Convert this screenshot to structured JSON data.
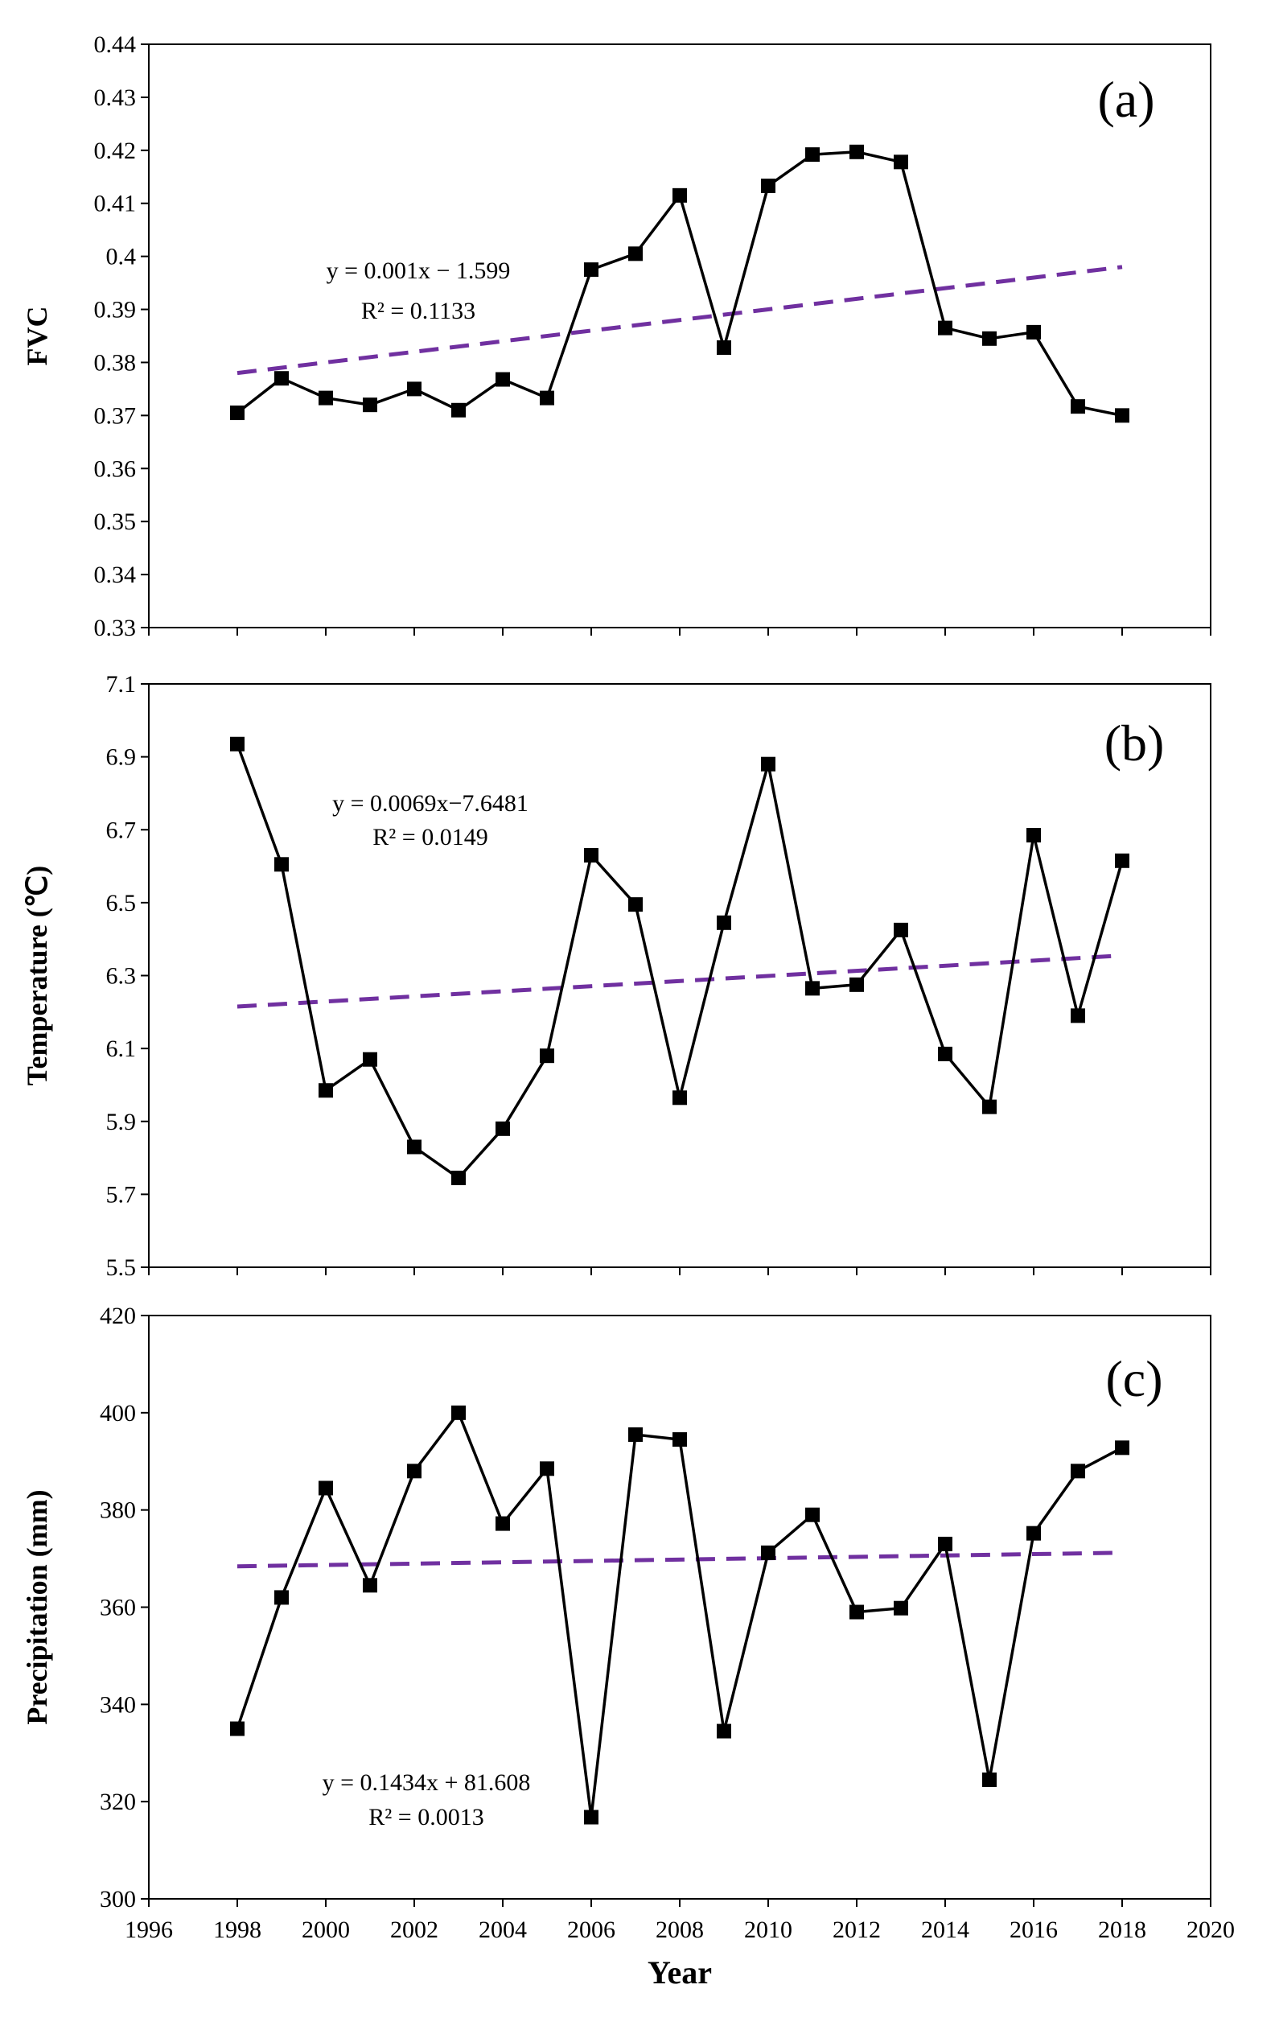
{
  "chart_data": [
    {
      "type": "line",
      "panel": "(a)",
      "ylabel": "FVC",
      "xlabel": "",
      "xlim": [
        1996,
        2020
      ],
      "ylim": [
        0.33,
        0.44
      ],
      "yticks": [
        "0.33",
        "0.34",
        "0.35",
        "0.36",
        "0.37",
        "0.38",
        "0.39",
        "0.4",
        "0.41",
        "0.42",
        "0.43",
        "0.44"
      ],
      "x": [
        1998,
        1999,
        2000,
        2001,
        2002,
        2003,
        2004,
        2005,
        2006,
        2007,
        2008,
        2009,
        2010,
        2011,
        2012,
        2013,
        2014,
        2015,
        2016,
        2017,
        2018
      ],
      "values": [
        0.3705,
        0.377,
        0.3733,
        0.372,
        0.375,
        0.371,
        0.3768,
        0.3733,
        0.3975,
        0.4005,
        0.4115,
        0.3828,
        0.4133,
        0.4192,
        0.4197,
        0.4178,
        0.3865,
        0.3845,
        0.3857,
        0.3717,
        0.37
      ],
      "trend": {
        "start": [
          1998,
          0.378
        ],
        "end": [
          2018,
          0.398
        ],
        "style": "dashed",
        "color": "#7030a0"
      },
      "equation": "y = 0.001x − 1.599",
      "r2": "R² = 0.1133"
    },
    {
      "type": "line",
      "panel": "(b)",
      "ylabel": "Temperature (℃)",
      "xlabel": "",
      "xlim": [
        1996,
        2020
      ],
      "ylim": [
        5.5,
        7.1
      ],
      "yticks": [
        "5.5",
        "5.7",
        "5.9",
        "6.1",
        "6.3",
        "6.5",
        "6.7",
        "6.9",
        "7.1"
      ],
      "x": [
        1998,
        1999,
        2000,
        2001,
        2002,
        2003,
        2004,
        2005,
        2006,
        2007,
        2008,
        2009,
        2010,
        2011,
        2012,
        2013,
        2014,
        2015,
        2016,
        2017,
        2018
      ],
      "values": [
        6.935,
        6.605,
        5.985,
        6.07,
        5.83,
        5.745,
        5.88,
        6.08,
        6.63,
        6.495,
        5.965,
        6.445,
        6.88,
        6.265,
        6.275,
        6.425,
        6.085,
        5.94,
        6.685,
        6.19,
        6.615
      ],
      "trend": {
        "start": [
          1998,
          6.215
        ],
        "end": [
          2018,
          6.355
        ],
        "style": "dashed",
        "color": "#7030a0"
      },
      "equation": "y = 0.0069x−7.6481",
      "r2": "R² = 0.0149"
    },
    {
      "type": "line",
      "panel": "(c)",
      "ylabel": "Precipitation (mm)",
      "xlabel": "Year",
      "xlim": [
        1996,
        2020
      ],
      "ylim": [
        300,
        420
      ],
      "yticks": [
        "300",
        "320",
        "340",
        "360",
        "380",
        "400",
        "420"
      ],
      "xticks": [
        "1996",
        "1998",
        "2000",
        "2002",
        "2004",
        "2006",
        "2008",
        "2010",
        "2012",
        "2014",
        "2016",
        "2018",
        "2020"
      ],
      "x": [
        1998,
        1999,
        2000,
        2001,
        2002,
        2003,
        2004,
        2005,
        2006,
        2007,
        2008,
        2009,
        2010,
        2011,
        2012,
        2013,
        2014,
        2015,
        2016,
        2017,
        2018
      ],
      "values": [
        335,
        362,
        384.5,
        364.5,
        388,
        400,
        377.2,
        388.5,
        316.8,
        395.5,
        394.5,
        334.5,
        371.2,
        379,
        359,
        359.8,
        373,
        324.5,
        375.2,
        388,
        392.8
      ],
      "trend": {
        "start": [
          1998,
          368.4
        ],
        "end": [
          2018,
          371.2
        ],
        "style": "dashed",
        "color": "#7030a0"
      },
      "equation": "y = 0.1434x + 81.608",
      "r2": "R² = 0.0013"
    }
  ],
  "colors": {
    "series": "#000000",
    "trend": "#7030a0"
  }
}
